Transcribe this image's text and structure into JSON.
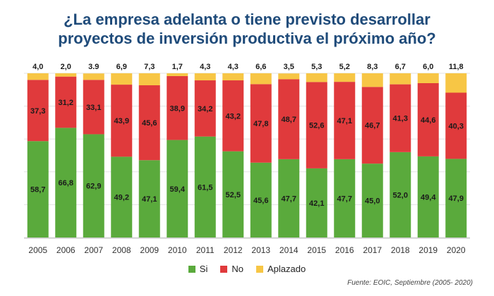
{
  "chart_data": {
    "type": "bar",
    "stacked": true,
    "title_line1": "¿La empresa adelanta o tiene previsto desarrollar",
    "title_line2": "proyectos de inversión productiva el próximo año?",
    "categories": [
      "2005",
      "2006",
      "2007",
      "2008",
      "2009",
      "2010",
      "2011",
      "2012",
      "2013",
      "2014",
      "2015",
      "2016",
      "2017",
      "2018",
      "2019",
      "2020"
    ],
    "series": [
      {
        "name": "Si",
        "color": "#5aaa3c",
        "values": [
          58.7,
          66.8,
          62.9,
          49.2,
          47.1,
          59.4,
          61.5,
          52.5,
          45.6,
          47.7,
          42.1,
          47.7,
          45.0,
          52.0,
          49.4,
          47.9
        ],
        "labels": [
          "58,7",
          "66,8",
          "62,9",
          "49,2",
          "47,1",
          "59,4",
          "61,5",
          "52,5",
          "45,6",
          "47,7",
          "42,1",
          "47,7",
          "45,0",
          "52,0",
          "49,4",
          "47,9"
        ]
      },
      {
        "name": "No",
        "color": "#e03a3c",
        "values": [
          37.3,
          31.2,
          33.1,
          43.9,
          45.6,
          38.9,
          34.2,
          43.2,
          47.8,
          48.7,
          52.6,
          47.1,
          46.7,
          41.3,
          44.6,
          40.3
        ],
        "labels": [
          "37,3",
          "31,2",
          "33,1",
          "43,9",
          "45,6",
          "38,9",
          "34,2",
          "43,2",
          "47,8",
          "48,7",
          "52,6",
          "47,1",
          "46,7",
          "41,3",
          "44,6",
          "40,3"
        ]
      },
      {
        "name": "Aplazado",
        "color": "#f7c645",
        "values": [
          4.0,
          2.0,
          3.9,
          6.9,
          7.3,
          1.7,
          4.3,
          4.3,
          6.6,
          3.5,
          5.3,
          5.2,
          8.3,
          6.7,
          6.0,
          11.8
        ],
        "labels": [
          "4,0",
          "2,0",
          "3.9",
          "6,9",
          "7,3",
          "1,7",
          "4,3",
          "4,3",
          "6,6",
          "3,5",
          "5,3",
          "5,2",
          "8,3",
          "6,7",
          "6,0",
          "11,8"
        ]
      }
    ],
    "ylim": [
      0,
      100
    ],
    "grid": true,
    "legend": "bottom-center",
    "source": "Fuente: EOIC, Septiembre (2005- 2020)"
  }
}
